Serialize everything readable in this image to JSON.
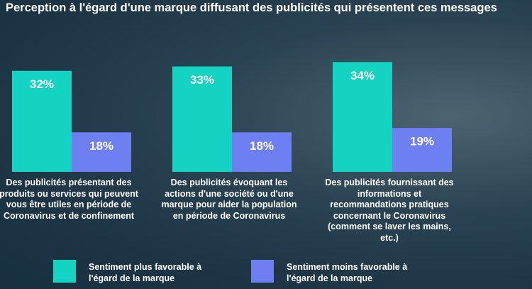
{
  "chart_data": {
    "type": "bar",
    "title": "Perception à l'égard d'une marque diffusant des publicités qui présentent ces messages",
    "categories": [
      "Des publicités présentant des produits ou services qui peuvent vous être utiles en période de Coronavirus et de confinement",
      "Des publicités évoquant les actions d'une société ou d'une marque pour aider la population en période de Coronavirus",
      "Des publicités fournissant des informations et recommandations pratiques concernant le Coronavirus (comment se laver les mains, etc.)"
    ],
    "series": [
      {
        "name": "Sentiment plus favorable à l'égard de la marque",
        "color": "#14d3c3",
        "values": [
          32,
          33,
          34
        ],
        "value_labels": [
          "32%",
          "33%",
          "34%"
        ]
      },
      {
        "name": "Sentiment moins favorable à l'égard de la marque",
        "color": "#6e7ff2",
        "values": [
          18,
          18,
          19
        ],
        "value_labels": [
          "18%",
          "18%",
          "19%"
        ]
      }
    ],
    "ylim": [
      9,
      36
    ]
  }
}
